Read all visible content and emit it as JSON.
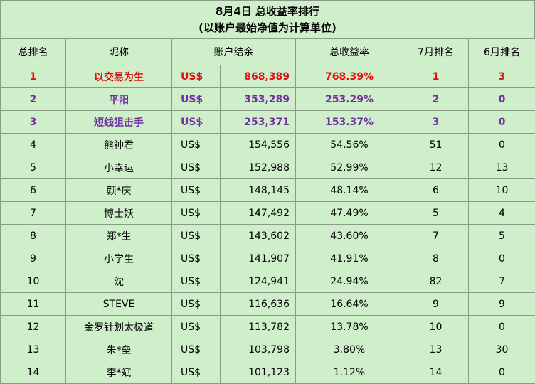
{
  "title": {
    "line1": "8月4日 总收益率排行",
    "line2": "(以账户最始净值为计算单位)"
  },
  "headers": [
    "总排名",
    "昵称",
    "账户结余",
    "总收益率",
    "7月排名",
    "6月排名"
  ],
  "currency": "US$",
  "colors": {
    "first": "#e01010",
    "second_third": "#7030a0",
    "background": "#cfeeca",
    "grid": "#8a9a88"
  },
  "rows": [
    {
      "rank": "1",
      "name": "以交易为生",
      "cur": "US$",
      "balance": "868,389",
      "yield": "768.39%",
      "jul": "1",
      "jun": "3"
    },
    {
      "rank": "2",
      "name": "平阳",
      "cur": "US$",
      "balance": "353,289",
      "yield": "253.29%",
      "jul": "2",
      "jun": "0"
    },
    {
      "rank": "3",
      "name": "短线狙击手",
      "cur": "US$",
      "balance": "253,371",
      "yield": "153.37%",
      "jul": "3",
      "jun": "0"
    },
    {
      "rank": "4",
      "name": "熊神君",
      "cur": "US$",
      "balance": "154,556",
      "yield": "54.56%",
      "jul": "51",
      "jun": "0"
    },
    {
      "rank": "5",
      "name": "小幸运",
      "cur": "US$",
      "balance": "152,988",
      "yield": "52.99%",
      "jul": "12",
      "jun": "13"
    },
    {
      "rank": "6",
      "name": "颜*庆",
      "cur": "US$",
      "balance": "148,145",
      "yield": "48.14%",
      "jul": "6",
      "jun": "10"
    },
    {
      "rank": "7",
      "name": "博士妖",
      "cur": "US$",
      "balance": "147,492",
      "yield": "47.49%",
      "jul": "5",
      "jun": "4"
    },
    {
      "rank": "8",
      "name": "郑*生",
      "cur": "US$",
      "balance": "143,602",
      "yield": "43.60%",
      "jul": "7",
      "jun": "5"
    },
    {
      "rank": "9",
      "name": "小学生",
      "cur": "US$",
      "balance": "141,907",
      "yield": "41.91%",
      "jul": "8",
      "jun": "0"
    },
    {
      "rank": "10",
      "name": "沈",
      "cur": "US$",
      "balance": "124,941",
      "yield": "24.94%",
      "jul": "82",
      "jun": "7"
    },
    {
      "rank": "11",
      "name": "STEVE",
      "cur": "US$",
      "balance": "116,636",
      "yield": "16.64%",
      "jul": "9",
      "jun": "9"
    },
    {
      "rank": "12",
      "name": "金罗针划太极道",
      "cur": "US$",
      "balance": "113,782",
      "yield": "13.78%",
      "jul": "10",
      "jun": "0"
    },
    {
      "rank": "13",
      "name": "朱*垒",
      "cur": "US$",
      "balance": "103,798",
      "yield": "3.80%",
      "jul": "13",
      "jun": "30"
    },
    {
      "rank": "14",
      "name": "李*斌",
      "cur": "US$",
      "balance": "101,123",
      "yield": "1.12%",
      "jul": "14",
      "jun": "0"
    }
  ]
}
